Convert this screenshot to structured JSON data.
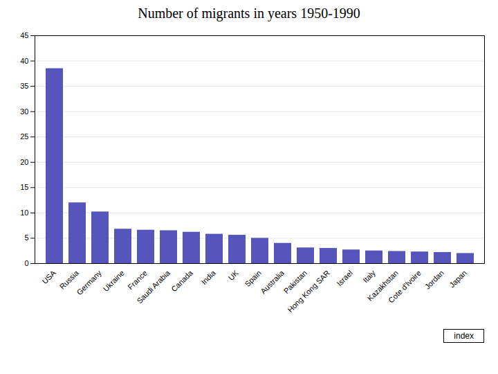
{
  "chart_data": {
    "type": "bar",
    "title": "Number of migrants in years 1950-1990",
    "categories": [
      "USA",
      "Russia",
      "Germany",
      "Ukraine",
      "France",
      "Saudi Arabia",
      "Canada",
      "India",
      "UK",
      "Spain",
      "Australia",
      "Pakistan",
      "Hong Kong SAR",
      "Israel",
      "Italy",
      "Kazakhstan",
      "Cote d'Ivoire",
      "Jordan",
      "Japan"
    ],
    "values": [
      38.5,
      12.0,
      10.2,
      6.8,
      6.6,
      6.5,
      6.2,
      5.8,
      5.6,
      5.0,
      4.0,
      3.1,
      3.0,
      2.7,
      2.5,
      2.4,
      2.3,
      2.2,
      2.0
    ],
    "color": "#5555bb",
    "ylim": [
      0,
      45
    ],
    "yticks": [
      0,
      5,
      10,
      15,
      20,
      25,
      30,
      35,
      40,
      45
    ],
    "grid": true,
    "annotations": [
      "index"
    ]
  }
}
